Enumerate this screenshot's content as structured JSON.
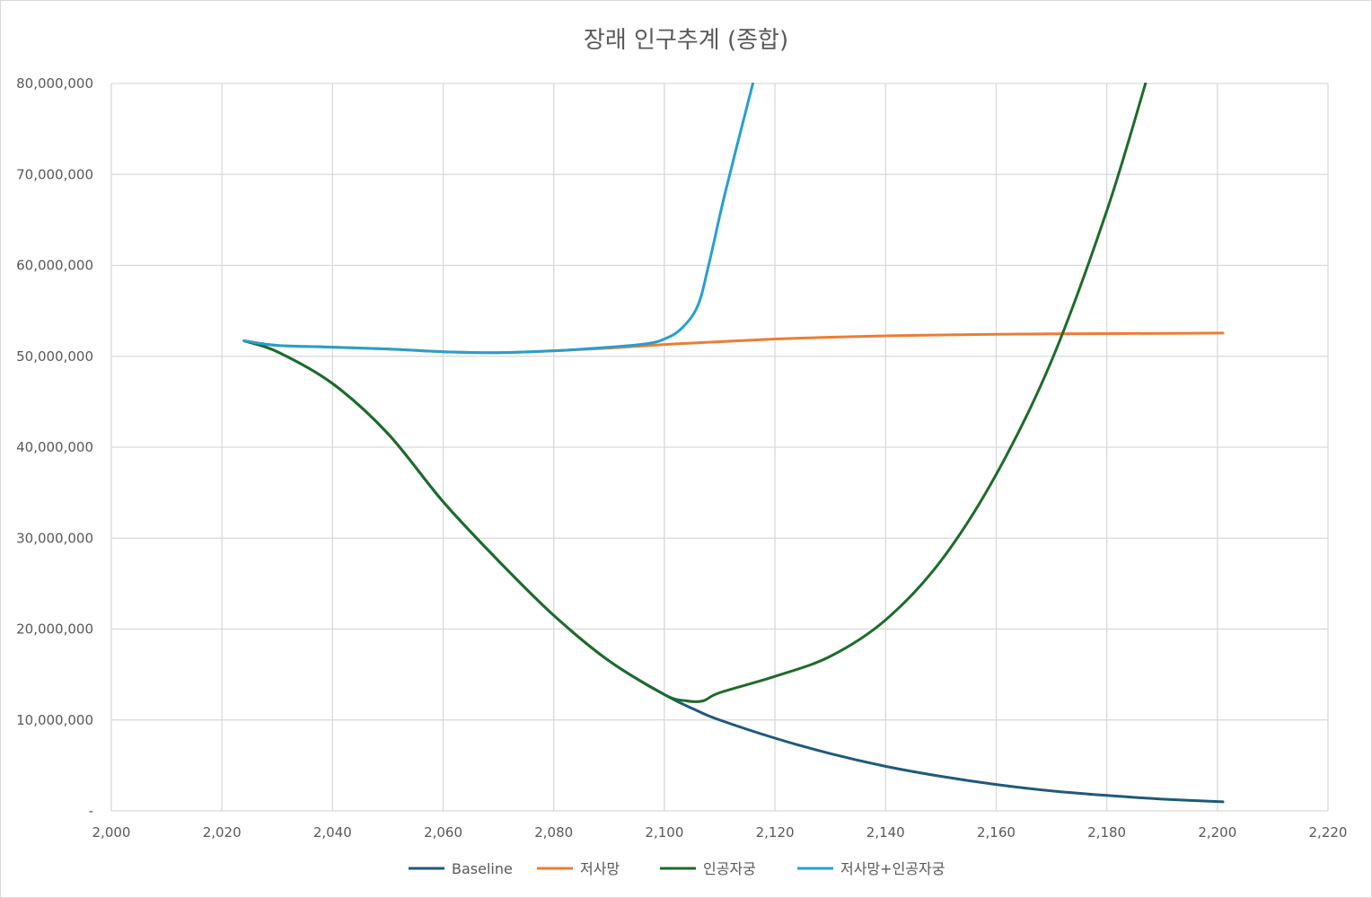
{
  "chart_data": {
    "type": "line",
    "title": "장래 인구추계 (종합)",
    "xlabel": "",
    "ylabel": "",
    "xlim": [
      2000,
      2220
    ],
    "ylim": [
      0,
      80000000
    ],
    "x_ticks": [
      2000,
      2020,
      2040,
      2060,
      2080,
      2100,
      2120,
      2140,
      2160,
      2180,
      2200,
      2220
    ],
    "x_tick_labels": [
      "2,000",
      "2,020",
      "2,040",
      "2,060",
      "2,080",
      "2,100",
      "2,120",
      "2,140",
      "2,160",
      "2,180",
      "2,200",
      "2,220"
    ],
    "y_ticks": [
      0,
      10000000,
      20000000,
      30000000,
      40000000,
      50000000,
      60000000,
      70000000,
      80000000
    ],
    "y_tick_labels": [
      "-",
      "10,000,000",
      "20,000,000",
      "30,000,000",
      "40,000,000",
      "50,000,000",
      "60,000,000",
      "70,000,000",
      "80,000,000"
    ],
    "grid": true,
    "legend_position": "bottom",
    "series": [
      {
        "name": "Baseline",
        "color": "#1f5a7a",
        "x": [
          2024,
          2030,
          2040,
          2050,
          2060,
          2070,
          2080,
          2090,
          2100,
          2106,
          2110,
          2120,
          2130,
          2140,
          2150,
          2160,
          2170,
          2180,
          2190,
          2201
        ],
        "y": [
          51700000,
          50500000,
          47000000,
          41500000,
          34000000,
          27500000,
          21500000,
          16500000,
          12800000,
          11000000,
          10000000,
          8000000,
          6300000,
          4900000,
          3800000,
          2900000,
          2200000,
          1700000,
          1300000,
          1000000
        ]
      },
      {
        "name": "저사망",
        "color": "#ed7d31",
        "x": [
          2024,
          2030,
          2040,
          2050,
          2060,
          2070,
          2080,
          2090,
          2100,
          2110,
          2120,
          2130,
          2140,
          2150,
          2160,
          2170,
          2180,
          2190,
          2201
        ],
        "y": [
          51700000,
          51200000,
          51000000,
          50800000,
          50500000,
          50400000,
          50600000,
          50900000,
          51300000,
          51600000,
          51900000,
          52100000,
          52250000,
          52350000,
          52420000,
          52470000,
          52500000,
          52520000,
          52550000
        ]
      },
      {
        "name": "인공자궁",
        "color": "#1e6b2a",
        "x": [
          2024,
          2030,
          2040,
          2050,
          2060,
          2070,
          2080,
          2090,
          2100,
          2104,
          2107,
          2110,
          2120,
          2130,
          2140,
          2150,
          2160,
          2170,
          2180,
          2187
        ],
        "y": [
          51700000,
          50500000,
          47000000,
          41500000,
          34000000,
          27500000,
          21500000,
          16500000,
          12800000,
          12100000,
          12100000,
          13000000,
          14800000,
          17000000,
          21000000,
          27500000,
          37000000,
          49500000,
          66000000,
          80000000
        ]
      },
      {
        "name": "저사망+인공자궁",
        "color": "#25a0d0",
        "x": [
          2024,
          2030,
          2040,
          2050,
          2060,
          2070,
          2080,
          2090,
          2097,
          2100,
          2103,
          2106,
          2108,
          2111,
          2116
        ],
        "y": [
          51700000,
          51200000,
          51000000,
          50800000,
          50500000,
          50400000,
          50600000,
          51000000,
          51400000,
          51900000,
          53000000,
          55500000,
          60000000,
          68000000,
          80000000
        ]
      }
    ]
  }
}
